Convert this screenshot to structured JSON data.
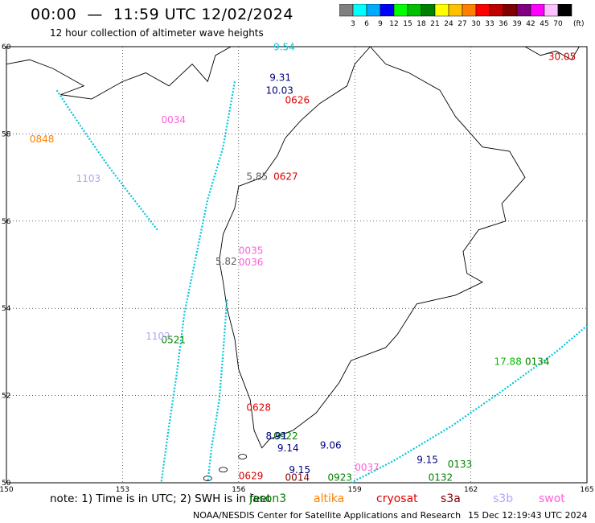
{
  "header": {
    "title": "00:00  —  11:59 UTC 12/02/2024",
    "subtitle": "12 hour collection of altimeter wave heights"
  },
  "colorbar": {
    "unit": "(ft)",
    "bins": [
      {
        "label": "3",
        "color": "#808080"
      },
      {
        "label": "6",
        "color": "#00ffff"
      },
      {
        "label": "9",
        "color": "#00aaff"
      },
      {
        "label": "12",
        "color": "#0000ff"
      },
      {
        "label": "15",
        "color": "#00ff00"
      },
      {
        "label": "18",
        "color": "#00c000"
      },
      {
        "label": "21",
        "color": "#008000"
      },
      {
        "label": "24",
        "color": "#ffff00"
      },
      {
        "label": "27",
        "color": "#ffc000"
      },
      {
        "label": "30",
        "color": "#ff8000"
      },
      {
        "label": "33",
        "color": "#ff0000"
      },
      {
        "label": "36",
        "color": "#c00000"
      },
      {
        "label": "39",
        "color": "#800000"
      },
      {
        "label": "42",
        "color": "#800080"
      },
      {
        "label": "45",
        "color": "#ff00ff"
      },
      {
        "label": "70",
        "color": "#ffc0ff"
      },
      {
        "label": "",
        "color": "#000000"
      }
    ]
  },
  "map": {
    "lon_ticks": [
      "150",
      "153",
      "156",
      "159",
      "162",
      "165"
    ],
    "lat_ticks": [
      "60",
      "58",
      "56",
      "54",
      "52",
      "50"
    ],
    "lon_range": [
      150,
      165
    ],
    "lat_range": [
      50,
      60
    ]
  },
  "tracks": [
    {
      "color": "#00c8dc",
      "points": [
        [
          155.9,
          59.2
        ],
        [
          155.6,
          57.7
        ],
        [
          155.2,
          56.5
        ],
        [
          154.9,
          55.2
        ],
        [
          154.6,
          53.9
        ],
        [
          154.4,
          52.5
        ],
        [
          154.2,
          51.3
        ],
        [
          154.0,
          50.0
        ]
      ]
    },
    {
      "color": "#00c8dc",
      "points": [
        [
          155.7,
          54.2
        ],
        [
          155.6,
          53.0
        ],
        [
          155.5,
          51.9
        ],
        [
          155.3,
          50.8
        ],
        [
          155.2,
          50.0
        ]
      ]
    },
    {
      "color": "#00c8dc",
      "points": [
        [
          158.9,
          50.0
        ],
        [
          160.0,
          50.5
        ],
        [
          161.5,
          51.3
        ],
        [
          162.8,
          52.1
        ],
        [
          164.2,
          53.0
        ],
        [
          165.0,
          53.6
        ]
      ]
    },
    {
      "color": "#00c8dc",
      "points": [
        [
          151.3,
          59.0
        ],
        [
          151.9,
          58.2
        ],
        [
          152.6,
          57.3
        ],
        [
          153.2,
          56.6
        ],
        [
          153.9,
          55.8
        ]
      ]
    }
  ],
  "labels": [
    {
      "text": "9.54",
      "color": "#00c8dc",
      "lon": 156.9,
      "lat": 59.92
    },
    {
      "text": "9.31",
      "color": "#000080",
      "lon": 156.8,
      "lat": 59.22
    },
    {
      "text": "10.03",
      "color": "#000080",
      "lon": 156.7,
      "lat": 58.92
    },
    {
      "text": "0626",
      "color": "#e00000",
      "lon": 157.2,
      "lat": 58.7
    },
    {
      "text": "0627",
      "color": "#e00000",
      "lon": 156.9,
      "lat": 56.95
    },
    {
      "text": "5.85",
      "color": "#606060",
      "lon": 156.2,
      "lat": 56.95
    },
    {
      "text": "0034",
      "color": "#ff60d8",
      "lon": 154.0,
      "lat": 58.25
    },
    {
      "text": "0848",
      "color": "#ff8000",
      "lon": 150.6,
      "lat": 57.8
    },
    {
      "text": "1103",
      "color": "#b4a0ff",
      "lon": 151.8,
      "lat": 56.9
    },
    {
      "text": "0035",
      "color": "#ff60d8",
      "lon": 156.0,
      "lat": 55.25
    },
    {
      "text": "0036",
      "color": "#ff60d8",
      "lon": 156.0,
      "lat": 54.98
    },
    {
      "text": "5.82",
      "color": "#606060",
      "lon": 155.4,
      "lat": 55.0
    },
    {
      "text": "0521",
      "color": "#008000",
      "lon": 154.0,
      "lat": 53.2
    },
    {
      "text": "1102",
      "color": "#b4a0ff",
      "lon": 153.6,
      "lat": 53.28
    },
    {
      "text": "0628",
      "color": "#e00000",
      "lon": 156.2,
      "lat": 51.65
    },
    {
      "text": "0922",
      "color": "#008000",
      "lon": 156.9,
      "lat": 51.0
    },
    {
      "text": "0629",
      "color": "#e00000",
      "lon": 156.0,
      "lat": 50.08
    },
    {
      "text": "0014",
      "color": "#800000",
      "lon": 157.2,
      "lat": 50.05
    },
    {
      "text": "0923",
      "color": "#008000",
      "lon": 158.3,
      "lat": 50.05
    },
    {
      "text": "0037",
      "color": "#ff60d8",
      "lon": 159.0,
      "lat": 50.28
    },
    {
      "text": "0133",
      "color": "#008000",
      "lon": 161.4,
      "lat": 50.35
    },
    {
      "text": "0132",
      "color": "#008000",
      "lon": 160.9,
      "lat": 50.05
    },
    {
      "text": "0134",
      "color": "#008000",
      "lon": 163.4,
      "lat": 52.7
    },
    {
      "text": "17.88",
      "color": "#00c000",
      "lon": 162.6,
      "lat": 52.7
    },
    {
      "text": "30.05",
      "color": "#e00000",
      "lon": 164.0,
      "lat": 59.7
    },
    {
      "text": "8.91",
      "color": "#000080",
      "lon": 156.7,
      "lat": 51.0
    },
    {
      "text": "9.06",
      "color": "#000080",
      "lon": 158.1,
      "lat": 50.78
    },
    {
      "text": "9.15",
      "color": "#000080",
      "lon": 160.6,
      "lat": 50.45
    },
    {
      "text": "9.14",
      "color": "#000080",
      "lon": 157.0,
      "lat": 50.72
    },
    {
      "text": "9.15",
      "color": "#000080",
      "lon": 157.3,
      "lat": 50.22
    }
  ],
  "footer": {
    "note": "note:  1) Time is in UTC;  2) SWH is in feet",
    "legend": [
      {
        "label": "jason3",
        "color": "#008000"
      },
      {
        "label": "altika",
        "color": "#ff8000"
      },
      {
        "label": "cryosat",
        "color": "#e00000"
      },
      {
        "label": "s3a",
        "color": "#800000"
      },
      {
        "label": "s3b",
        "color": "#b4a0ff"
      },
      {
        "label": "swot",
        "color": "#ff60d8"
      }
    ],
    "credit": "NOAA/NESDIS Center for Satellite Applications and Research",
    "timestamp": "15 Dec 12:19:43 UTC 2024"
  }
}
